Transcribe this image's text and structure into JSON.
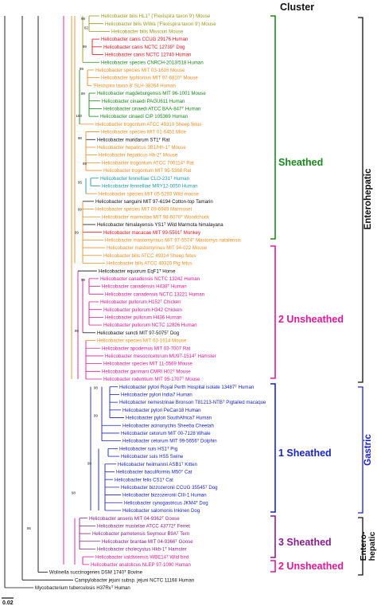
{
  "header": {
    "title": "Cluster"
  },
  "scale": {
    "label": "0.02"
  },
  "colors": {
    "olive": "#9a9a1c",
    "red": "#e8141c",
    "green": "#1a8a1a",
    "orange": "#f08c1e",
    "teal": "#1b9aa3",
    "black": "#111111",
    "magenta": "#e4189a",
    "blue": "#1a24c8",
    "purple": "#8a1d8e"
  },
  "tips": [
    {
      "name": "Helicobacter bilis HL1ᵀ ('Flexispira taxon 9') Mouse",
      "color": "olive"
    },
    {
      "name": "Helicobacter bilis WiWa ('Flexispira taxon 9') Mouse",
      "color": "olive"
    },
    {
      "name": "Helicobacter bilis Missouri Mouse",
      "color": "olive"
    },
    {
      "name": "Helicobacter canis CCUG 29176 Human",
      "color": "red"
    },
    {
      "name": "Helicobacter canis NCTC 12739ᵀ Dog",
      "color": "red"
    },
    {
      "name": "Helicobacter canis NCTC 12740 Human",
      "color": "red"
    },
    {
      "name": "Helicobacter species CNRCH-2013/518 Human",
      "color": "green"
    },
    {
      "name": "Helicobacter species MIT 03-1616 Mouse",
      "color": "orange"
    },
    {
      "name": "Helicobacter typhlonius MIT 97-6810ᵀ Mouse",
      "color": "orange"
    },
    {
      "name": "'Flexispira taxon 8' SLH-38264 Human",
      "color": "orange"
    },
    {
      "name": "Helicobacter magdeburgensis MIT 96-1001 Mouse",
      "color": "green"
    },
    {
      "name": "Helicobacter cinaedi PAGU611 Human",
      "color": "green"
    },
    {
      "name": "Helicobacter cinaedi ATCC BAA-847ᵀ Human",
      "color": "green"
    },
    {
      "name": "Helicobacter cinaedi CIP 105369 Human",
      "color": "green"
    },
    {
      "name": "Helicobacter trogontum ATCC 49310 Sheep fetus",
      "color": "orange"
    },
    {
      "name": "Helicobacter species MIT 01-6451 Mice",
      "color": "orange"
    },
    {
      "name": "Helicobacter muridarum ST1ᵀ Rat",
      "color": "black"
    },
    {
      "name": "Helicobacter hepaticus 3B1/Hh-1ᵀ Mouse",
      "color": "orange"
    },
    {
      "name": "Helicobacter hepaticus Hh-2ᵀ Mouse",
      "color": "orange"
    },
    {
      "name": "Helicobacter trogontum ATCC 700114ᵀ Rat",
      "color": "orange"
    },
    {
      "name": "Helicobacter trogontum MIT 95-5368 Rat",
      "color": "orange"
    },
    {
      "name": "Helicobacter fennelliae CLO-231ᵀ Human",
      "color": "teal"
    },
    {
      "name": "Helicobacter fennelliae MRY12-0050 Human",
      "color": "teal"
    },
    {
      "name": "Helicobacter species MIT 05-5293 Wild mouse",
      "color": "orange"
    },
    {
      "name": "Helicobacter sanguini MIT 97-6194 Cotton-top Tamarin",
      "color": "black"
    },
    {
      "name": "Helicobacter species MIT 09-6949 Marmoset",
      "color": "orange"
    },
    {
      "name": "Helicobacter marmotae MIT 98-6070ᵀ Woodchuck",
      "color": "orange"
    },
    {
      "name": "Helicobacter himalayensis YS1ᵀ Wild Marmota himalayana",
      "color": "black"
    },
    {
      "name": "Helicobacter macacae MIT 99-5501ᵀ Monkey",
      "color": "red"
    },
    {
      "name": "Helicobacter mastomyrinus MIT 97-5574ᵀ Mastomys natalensis",
      "color": "orange"
    },
    {
      "name": "Helicobacter mastomyrinus MIT 94-022 Mouse",
      "color": "orange"
    },
    {
      "name": "Helicobacter bilis ATCC 49314 Sheep fetus",
      "color": "orange"
    },
    {
      "name": "Helicobacter bilis ATCC 49320 Pig fetus",
      "color": "orange"
    },
    {
      "name": "Helicobacter equorum EqF1ᵀ Horse",
      "color": "black"
    },
    {
      "name": "Helicobacter canadensis NCTC 13242 Human",
      "color": "magenta"
    },
    {
      "name": "Helicobacter canadensis H438ᵀ Human",
      "color": "magenta"
    },
    {
      "name": "Helicobacter canadensis NCTC 13221 Human",
      "color": "magenta"
    },
    {
      "name": "Helicobacter pullorum H152ᵀ Chicken",
      "color": "magenta"
    },
    {
      "name": "Helicobacter pullorum H342 Chicken",
      "color": "magenta"
    },
    {
      "name": "Helicobacter pullorum H436 Human",
      "color": "magenta"
    },
    {
      "name": "Helicobacter pullorum NCTC 12826 Human",
      "color": "magenta"
    },
    {
      "name": "Helicobacter suncti MIT 97-5075ᵀ Dog",
      "color": "black"
    },
    {
      "name": "Helicobacter species MIT 03-1614 Mouse",
      "color": "orange"
    },
    {
      "name": "Helicobacter apodemus MIT 03-7007 Rat",
      "color": "magenta"
    },
    {
      "name": "Helicobacter mesocricetorum MU97-1514ᵀ Hamster",
      "color": "magenta"
    },
    {
      "name": "Helicobacter species MIT 11-5569 Mouse",
      "color": "magenta"
    },
    {
      "name": "Helicobacter ganmani CMRI H02ᵀ Mouse",
      "color": "magenta"
    },
    {
      "name": "Helicobacter rodentium MIT 95-1707ᵀ Mouse",
      "color": "magenta"
    },
    {
      "name": "Helicobacter pylori Royal Perth Hospital isolate 13487ᵀ Human",
      "color": "blue"
    },
    {
      "name": "Helicobacter pylori India7 Human",
      "color": "blue"
    },
    {
      "name": "Helicobacter nemestrinae Bronson T81213-NTBᵀ Pigtailed macaque",
      "color": "blue"
    },
    {
      "name": "Helicobacter pylori PeCan18 Human",
      "color": "blue"
    },
    {
      "name": "Helicobacter pylori SouthAfrica7 Human",
      "color": "blue"
    },
    {
      "name": "Helicobacter acinonychis Sheeba Cheetah",
      "color": "blue"
    },
    {
      "name": "Helicobacter cetorum MIT 00-7128 Whale",
      "color": "blue"
    },
    {
      "name": "Helicobacter cetorum MIT 99-5656ᵀ Dolphin",
      "color": "blue"
    },
    {
      "name": "Helicobacter suis HS1ᵀ Pig",
      "color": "blue"
    },
    {
      "name": "Helicobacter suis HS5 Swine",
      "color": "blue"
    },
    {
      "name": "Helicobacter heilmannii ASB1ᵀ Kitten",
      "color": "blue"
    },
    {
      "name": "Helicobacter baculiformis M50ᵀ Cat",
      "color": "blue"
    },
    {
      "name": "Helicobacter felis CS1ᵀ Cat",
      "color": "blue"
    },
    {
      "name": "Helicobacter bizzozeronii CCUG 35545ᵀ Dog",
      "color": "blue"
    },
    {
      "name": "Helicobacter bizzozeronii CIII-1 Human",
      "color": "blue"
    },
    {
      "name": "Helicobacter cynogastricus JKM4ᵀ Dog",
      "color": "blue"
    },
    {
      "name": "Helicobacter salomonis Inkinen Dog",
      "color": "blue"
    },
    {
      "name": "Helicobacter anseris MIT 04-9362ᵀ Goose",
      "color": "purple"
    },
    {
      "name": "Helicobacter mustelae ATCC 43772ᵀ Ferret",
      "color": "purple"
    },
    {
      "name": "Helicobacter pametensis Seymour B9Aᵀ Tern",
      "color": "purple"
    },
    {
      "name": "Helicobacter brantae MIT 04-9366ᵀ Goose",
      "color": "purple"
    },
    {
      "name": "Helicobacter cholecystus Hkb-1ᵀ Hamster",
      "color": "purple"
    },
    {
      "name": "Helicobacter valdiviensis WBE14ᵀ Wild bird",
      "color": "magenta"
    },
    {
      "name": "Helicobacter anatolicus NLEP 97-1090 Human",
      "color": "magenta"
    },
    {
      "name": "Wolinella succinogenes DSM 1740ᵀ Bovine",
      "color": "black"
    },
    {
      "name": "Campylobacter jejuni subsp. jejuni NCTC 11168 Human",
      "color": "black"
    },
    {
      "name": "Mycobacterium tuberculosis H37Rvᵀ Human",
      "color": "black"
    }
  ],
  "clusters": [
    {
      "label": "Sheathed",
      "color": "green"
    },
    {
      "label": "2 Unsheathed",
      "color": "magenta"
    },
    {
      "label": "1 Sheathed",
      "color": "blue"
    },
    {
      "label": "3 Sheathed",
      "color": "purple"
    },
    {
      "label": "2 Unsheathed",
      "color": "magenta"
    }
  ],
  "groups": [
    {
      "label": "Enterohepatic"
    },
    {
      "label": "Gastric"
    },
    {
      "label_line1": "Entero-",
      "label_line2": "hepatic"
    }
  ],
  "bootstrap": [
    "99",
    "62",
    "99",
    "99",
    "99",
    "100",
    "98",
    "99",
    "95",
    "99",
    "99",
    "99",
    "99",
    "98",
    "99",
    "99",
    "98",
    "95"
  ]
}
